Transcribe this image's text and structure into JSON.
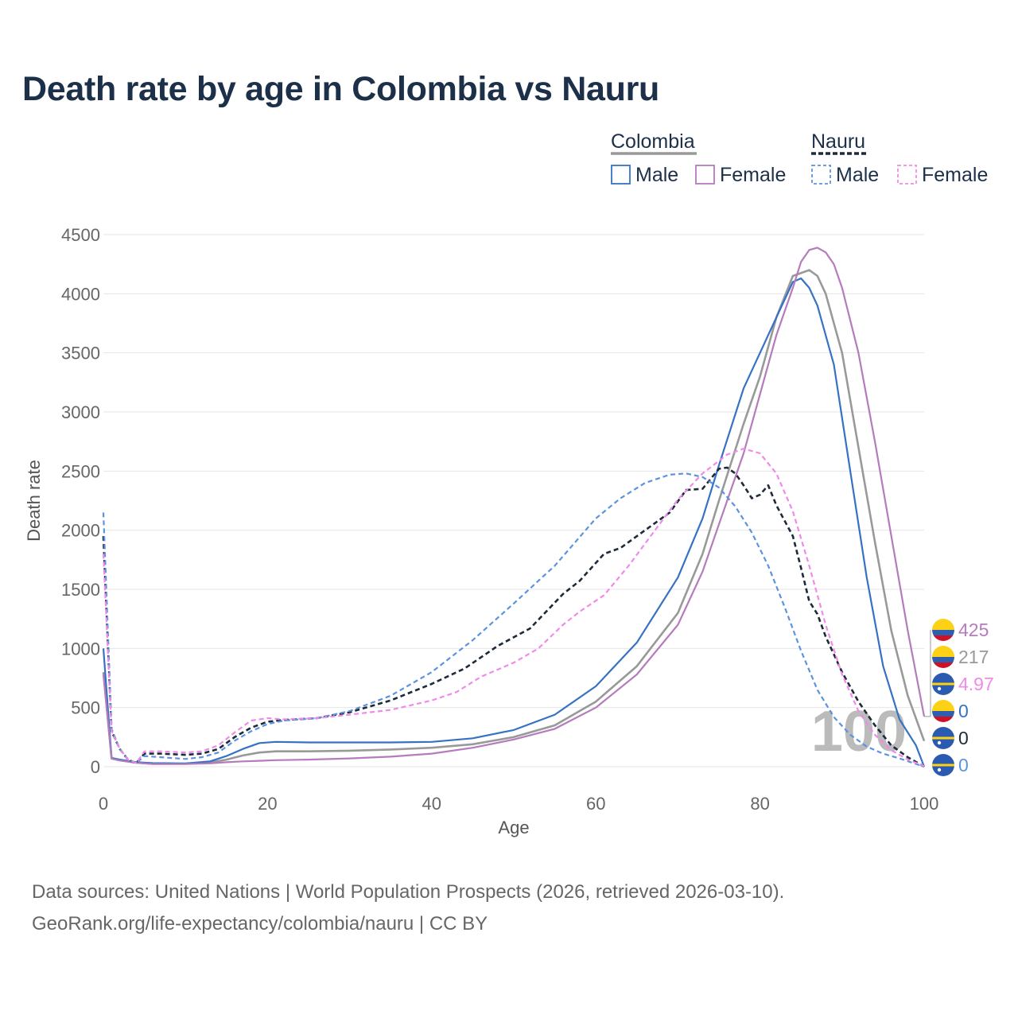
{
  "title": "Death rate by age in Colombia vs Nauru",
  "sources": {
    "line1": "Data sources: United Nations | World Population Prospects (2026, retrieved 2026-03-10).",
    "line2": "GeoRank.org/life-expectancy/colombia/nauru | CC BY"
  },
  "legend": {
    "groups": [
      {
        "name": "Colombia",
        "color": "#999999",
        "dash": false,
        "items": [
          {
            "label": "Male",
            "color": "#3672c4"
          },
          {
            "label": "Female",
            "color": "#b57bbd"
          }
        ]
      },
      {
        "name": "Nauru",
        "color": "#1d2a3a",
        "dash": true,
        "items": [
          {
            "label": "Male",
            "color": "#5b93e0"
          },
          {
            "label": "Female",
            "color": "#f08ae8"
          }
        ]
      }
    ]
  },
  "year_label": "100",
  "chart_data": {
    "type": "line",
    "xlabel": "Age",
    "ylabel": "Death rate",
    "xlim": [
      0,
      100
    ],
    "ylim": [
      0,
      4500
    ],
    "xticks": [
      0,
      20,
      40,
      60,
      80,
      100
    ],
    "yticks": [
      0,
      500,
      1000,
      1500,
      2000,
      2500,
      3000,
      3500,
      4000,
      4500
    ],
    "grid": true,
    "series": [
      {
        "name": "Colombia Total",
        "color": "#999999",
        "dash": false,
        "points": [
          [
            0,
            800
          ],
          [
            1,
            70
          ],
          [
            2,
            55
          ],
          [
            4,
            35
          ],
          [
            6,
            25
          ],
          [
            10,
            25
          ],
          [
            13,
            35
          ],
          [
            15,
            60
          ],
          [
            17,
            95
          ],
          [
            19,
            120
          ],
          [
            21,
            130
          ],
          [
            25,
            130
          ],
          [
            30,
            135
          ],
          [
            35,
            145
          ],
          [
            40,
            160
          ],
          [
            45,
            190
          ],
          [
            50,
            250
          ],
          [
            55,
            350
          ],
          [
            60,
            550
          ],
          [
            65,
            850
          ],
          [
            70,
            1300
          ],
          [
            73,
            1800
          ],
          [
            75,
            2250
          ],
          [
            78,
            2900
          ],
          [
            80,
            3300
          ],
          [
            82,
            3800
          ],
          [
            84,
            4150
          ],
          [
            86,
            4200
          ],
          [
            87,
            4150
          ],
          [
            88,
            4000
          ],
          [
            90,
            3500
          ],
          [
            92,
            2700
          ],
          [
            94,
            1900
          ],
          [
            96,
            1150
          ],
          [
            98,
            600
          ],
          [
            100,
            217
          ]
        ]
      },
      {
        "name": "Colombia Male",
        "color": "#3672c4",
        "dash": false,
        "points": [
          [
            0,
            1000
          ],
          [
            1,
            75
          ],
          [
            2,
            60
          ],
          [
            4,
            38
          ],
          [
            6,
            30
          ],
          [
            10,
            28
          ],
          [
            13,
            45
          ],
          [
            15,
            90
          ],
          [
            17,
            150
          ],
          [
            19,
            200
          ],
          [
            21,
            210
          ],
          [
            25,
            205
          ],
          [
            30,
            205
          ],
          [
            35,
            205
          ],
          [
            40,
            210
          ],
          [
            45,
            240
          ],
          [
            50,
            310
          ],
          [
            55,
            440
          ],
          [
            60,
            680
          ],
          [
            65,
            1050
          ],
          [
            70,
            1600
          ],
          [
            73,
            2100
          ],
          [
            75,
            2550
          ],
          [
            78,
            3200
          ],
          [
            80,
            3500
          ],
          [
            82,
            3800
          ],
          [
            84,
            4100
          ],
          [
            85,
            4130
          ],
          [
            86,
            4050
          ],
          [
            87,
            3900
          ],
          [
            89,
            3400
          ],
          [
            91,
            2500
          ],
          [
            93,
            1600
          ],
          [
            95,
            850
          ],
          [
            97,
            400
          ],
          [
            99,
            180
          ],
          [
            100,
            0
          ]
        ]
      },
      {
        "name": "Colombia Female",
        "color": "#b57bbd",
        "dash": false,
        "points": [
          [
            0,
            780
          ],
          [
            1,
            68
          ],
          [
            2,
            52
          ],
          [
            4,
            33
          ],
          [
            6,
            22
          ],
          [
            10,
            22
          ],
          [
            13,
            28
          ],
          [
            15,
            38
          ],
          [
            17,
            45
          ],
          [
            19,
            50
          ],
          [
            21,
            55
          ],
          [
            25,
            60
          ],
          [
            30,
            70
          ],
          [
            35,
            85
          ],
          [
            40,
            110
          ],
          [
            45,
            160
          ],
          [
            50,
            230
          ],
          [
            55,
            320
          ],
          [
            60,
            500
          ],
          [
            65,
            780
          ],
          [
            70,
            1200
          ],
          [
            73,
            1650
          ],
          [
            75,
            2050
          ],
          [
            78,
            2650
          ],
          [
            80,
            3150
          ],
          [
            82,
            3650
          ],
          [
            84,
            4050
          ],
          [
            85,
            4270
          ],
          [
            86,
            4370
          ],
          [
            87,
            4390
          ],
          [
            88,
            4350
          ],
          [
            89,
            4250
          ],
          [
            90,
            4050
          ],
          [
            92,
            3500
          ],
          [
            94,
            2750
          ],
          [
            96,
            1950
          ],
          [
            98,
            1150
          ],
          [
            100,
            425
          ]
        ]
      },
      {
        "name": "Nauru Total",
        "color": "#1d2a3a",
        "dash": true,
        "points": [
          [
            0,
            1950
          ],
          [
            1,
            300
          ],
          [
            2,
            150
          ],
          [
            3,
            60
          ],
          [
            4,
            30
          ],
          [
            5,
            110
          ],
          [
            7,
            110
          ],
          [
            10,
            100
          ],
          [
            12,
            110
          ],
          [
            14,
            150
          ],
          [
            16,
            250
          ],
          [
            18,
            330
          ],
          [
            20,
            380
          ],
          [
            22,
            395
          ],
          [
            26,
            410
          ],
          [
            30,
            460
          ],
          [
            35,
            560
          ],
          [
            40,
            700
          ],
          [
            44,
            830
          ],
          [
            48,
            1020
          ],
          [
            52,
            1170
          ],
          [
            56,
            1460
          ],
          [
            58,
            1570
          ],
          [
            61,
            1800
          ],
          [
            63,
            1850
          ],
          [
            66,
            2000
          ],
          [
            69,
            2150
          ],
          [
            71,
            2340
          ],
          [
            73,
            2350
          ],
          [
            75,
            2520
          ],
          [
            76,
            2530
          ],
          [
            77,
            2480
          ],
          [
            78,
            2380
          ],
          [
            79,
            2270
          ],
          [
            80,
            2300
          ],
          [
            81,
            2380
          ],
          [
            82,
            2210
          ],
          [
            84,
            1950
          ],
          [
            85,
            1680
          ],
          [
            86,
            1400
          ],
          [
            87,
            1290
          ],
          [
            88,
            1100
          ],
          [
            90,
            800
          ],
          [
            92,
            550
          ],
          [
            94,
            350
          ],
          [
            96,
            180
          ],
          [
            98,
            80
          ],
          [
            100,
            0
          ]
        ]
      },
      {
        "name": "Nauru Male",
        "color": "#5b93e0",
        "dash": true,
        "points": [
          [
            0,
            2150
          ],
          [
            1,
            320
          ],
          [
            2,
            150
          ],
          [
            3,
            60
          ],
          [
            4,
            30
          ],
          [
            5,
            90
          ],
          [
            7,
            80
          ],
          [
            10,
            65
          ],
          [
            12,
            80
          ],
          [
            14,
            120
          ],
          [
            16,
            220
          ],
          [
            18,
            300
          ],
          [
            20,
            360
          ],
          [
            22,
            390
          ],
          [
            26,
            410
          ],
          [
            30,
            470
          ],
          [
            35,
            600
          ],
          [
            40,
            800
          ],
          [
            45,
            1070
          ],
          [
            50,
            1380
          ],
          [
            55,
            1700
          ],
          [
            60,
            2100
          ],
          [
            63,
            2270
          ],
          [
            66,
            2400
          ],
          [
            69,
            2470
          ],
          [
            71,
            2480
          ],
          [
            73,
            2450
          ],
          [
            75,
            2360
          ],
          [
            77,
            2200
          ],
          [
            79,
            1980
          ],
          [
            81,
            1700
          ],
          [
            83,
            1350
          ],
          [
            85,
            980
          ],
          [
            87,
            650
          ],
          [
            89,
            420
          ],
          [
            91,
            270
          ],
          [
            93,
            170
          ],
          [
            95,
            110
          ],
          [
            97,
            70
          ],
          [
            100,
            0
          ]
        ]
      },
      {
        "name": "Nauru Female",
        "color": "#f08ae8",
        "dash": true,
        "points": [
          [
            0,
            1800
          ],
          [
            1,
            300
          ],
          [
            2,
            150
          ],
          [
            3,
            60
          ],
          [
            4,
            30
          ],
          [
            5,
            130
          ],
          [
            7,
            130
          ],
          [
            10,
            120
          ],
          [
            12,
            130
          ],
          [
            14,
            180
          ],
          [
            16,
            290
          ],
          [
            18,
            390
          ],
          [
            20,
            410
          ],
          [
            22,
            400
          ],
          [
            26,
            410
          ],
          [
            30,
            440
          ],
          [
            35,
            480
          ],
          [
            40,
            560
          ],
          [
            43,
            630
          ],
          [
            46,
            760
          ],
          [
            50,
            880
          ],
          [
            53,
            1000
          ],
          [
            56,
            1200
          ],
          [
            58,
            1310
          ],
          [
            61,
            1450
          ],
          [
            64,
            1700
          ],
          [
            67,
            1980
          ],
          [
            70,
            2260
          ],
          [
            73,
            2480
          ],
          [
            76,
            2640
          ],
          [
            78,
            2690
          ],
          [
            80,
            2650
          ],
          [
            82,
            2480
          ],
          [
            84,
            2160
          ],
          [
            86,
            1700
          ],
          [
            88,
            1200
          ],
          [
            90,
            780
          ],
          [
            92,
            470
          ],
          [
            94,
            270
          ],
          [
            96,
            140
          ],
          [
            98,
            60
          ],
          [
            100,
            5
          ]
        ]
      }
    ],
    "end_labels": [
      {
        "value": "425",
        "color": "#b57bbd",
        "flag": "colombia"
      },
      {
        "value": "217",
        "color": "#999999",
        "flag": "colombia"
      },
      {
        "value": "4.97",
        "color": "#f08ae8",
        "flag": "nauru"
      },
      {
        "value": "0",
        "color": "#3672c4",
        "flag": "colombia"
      },
      {
        "value": "0",
        "color": "#1d2a3a",
        "flag": "nauru"
      },
      {
        "value": "0",
        "color": "#5b93e0",
        "flag": "nauru"
      }
    ]
  }
}
